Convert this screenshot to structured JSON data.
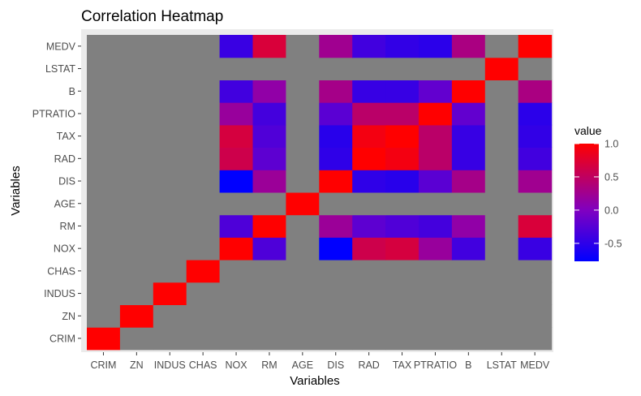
{
  "chart_data": {
    "type": "heatmap",
    "title": "Correlation Heatmap",
    "xlabel": "Variables",
    "ylabel": "Variables",
    "variables": [
      "CRIM",
      "ZN",
      "INDUS",
      "CHAS",
      "NOX",
      "RM",
      "AGE",
      "DIS",
      "RAD",
      "TAX",
      "PTRATIO",
      "B",
      "LSTAT",
      "MEDV"
    ],
    "na_color": "#808080",
    "matrix": [
      [
        1,
        null,
        null,
        null,
        null,
        null,
        null,
        null,
        null,
        null,
        null,
        null,
        null,
        null
      ],
      [
        null,
        1,
        null,
        null,
        null,
        null,
        null,
        null,
        null,
        null,
        null,
        null,
        null,
        null
      ],
      [
        null,
        null,
        1,
        null,
        null,
        null,
        null,
        null,
        null,
        null,
        null,
        null,
        null,
        null
      ],
      [
        null,
        null,
        null,
        1,
        null,
        null,
        null,
        null,
        null,
        null,
        null,
        null,
        null,
        null
      ],
      [
        null,
        null,
        null,
        null,
        1,
        -0.3,
        null,
        -0.77,
        0.61,
        0.67,
        0.19,
        -0.38,
        null,
        -0.43
      ],
      [
        null,
        null,
        null,
        null,
        -0.3,
        1,
        null,
        0.21,
        -0.21,
        -0.29,
        -0.36,
        0.13,
        null,
        0.7
      ],
      [
        null,
        null,
        null,
        null,
        null,
        null,
        1,
        null,
        null,
        null,
        null,
        null,
        null,
        null
      ],
      [
        null,
        null,
        null,
        null,
        -0.77,
        0.21,
        null,
        1,
        -0.49,
        -0.53,
        -0.23,
        0.29,
        null,
        0.25
      ],
      [
        null,
        null,
        null,
        null,
        0.61,
        -0.21,
        null,
        -0.49,
        1,
        0.91,
        0.46,
        -0.44,
        null,
        -0.38
      ],
      [
        null,
        null,
        null,
        null,
        0.67,
        -0.29,
        null,
        -0.53,
        0.91,
        1,
        0.46,
        -0.44,
        null,
        -0.47
      ],
      [
        null,
        null,
        null,
        null,
        0.19,
        -0.36,
        null,
        -0.23,
        0.46,
        0.46,
        1,
        -0.18,
        null,
        -0.51
      ],
      [
        null,
        null,
        null,
        null,
        -0.38,
        0.13,
        null,
        0.29,
        -0.44,
        -0.44,
        -0.18,
        1,
        null,
        0.33
      ],
      [
        null,
        null,
        null,
        null,
        null,
        null,
        null,
        null,
        null,
        null,
        null,
        null,
        1,
        null
      ],
      [
        null,
        null,
        null,
        null,
        -0.43,
        0.7,
        null,
        0.25,
        -0.38,
        -0.47,
        -0.51,
        0.33,
        null,
        1
      ]
    ],
    "legend": {
      "title": "value",
      "ticks": [
        1.0,
        0.5,
        0.0,
        -0.5
      ],
      "tick_labels": [
        "1.0",
        "0.5",
        "0.0",
        "-0.5"
      ],
      "min": -0.77,
      "max": 1,
      "low_color": "#0000ff",
      "mid_color": "#8000c0",
      "high_color": "#ff0000"
    },
    "panel_background": "#ebebeb",
    "legend_position": "right"
  }
}
